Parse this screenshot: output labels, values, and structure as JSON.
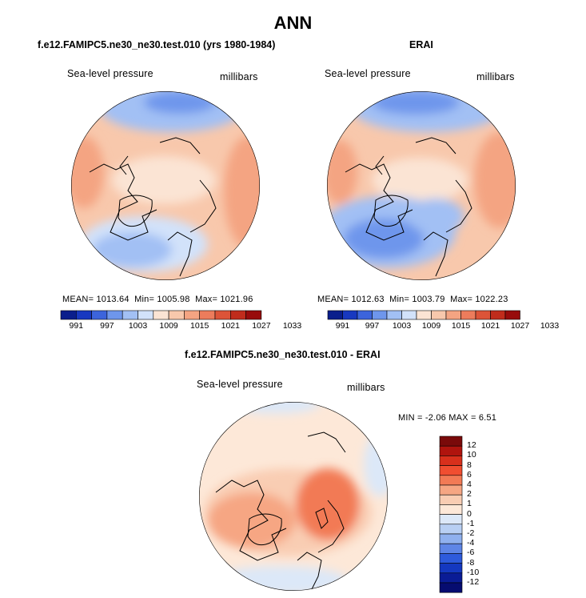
{
  "chart_data": {
    "type": "heatmap",
    "title": "ANN",
    "panels": [
      {
        "id": "model",
        "title": "f.e12.FAMIPC5.ne30_ne30.test.010 (yrs 1980-1984)",
        "left_label": "Sea-level pressure",
        "right_label": "millibars",
        "stats": {
          "mean_label": "MEAN=",
          "mean": "1013.64",
          "min_label": "Min=",
          "min": "1005.98",
          "max_label": "Max=",
          "max": "1021.96"
        },
        "colorbar_levels": [
          "991",
          "997",
          "1003",
          "1009",
          "1015",
          "1021",
          "1027",
          "1033"
        ]
      },
      {
        "id": "obs",
        "title": "ERAI",
        "left_label": "Sea-level pressure",
        "right_label": "millibars",
        "stats": {
          "mean_label": "MEAN=",
          "mean": "1012.63",
          "min_label": "Min=",
          "min": "1003.79",
          "max_label": "Max=",
          "max": "1022.23"
        },
        "colorbar_levels": [
          "991",
          "997",
          "1003",
          "1009",
          "1015",
          "1021",
          "1027",
          "1033"
        ]
      },
      {
        "id": "diff",
        "title": "f.e12.FAMIPC5.ne30_ne30.test.010 - ERAI",
        "left_label": "Sea-level pressure",
        "right_label": "millibars",
        "stats": {
          "min_label": "MIN =",
          "min": "-2.06",
          "max_label": "MAX =",
          "max": "6.51"
        },
        "colorbar_levels": [
          "12",
          "10",
          "8",
          "6",
          "4",
          "2",
          "1",
          "0",
          "-1",
          "-2",
          "-4",
          "-6",
          "-8",
          "-10",
          "-12"
        ]
      }
    ],
    "abs_colors": [
      "#0a1e8c",
      "#1838c0",
      "#3c64dc",
      "#6e96ec",
      "#a2c0f4",
      "#d2e2fa",
      "#fbe4d4",
      "#f8c8ac",
      "#f4a482",
      "#ec7c5c",
      "#dc5438",
      "#c02c1c",
      "#980c0c"
    ],
    "diff_colors": [
      "#7a0a0a",
      "#b0140e",
      "#d8301c",
      "#f04e30",
      "#f27a55",
      "#f6a683",
      "#f9cdb3",
      "#fde8d8",
      "#dce8f8",
      "#b8cff3",
      "#8fb0ee",
      "#5e85e6",
      "#2e5bdc",
      "#1438c0",
      "#0a1c96",
      "#060c70"
    ]
  }
}
